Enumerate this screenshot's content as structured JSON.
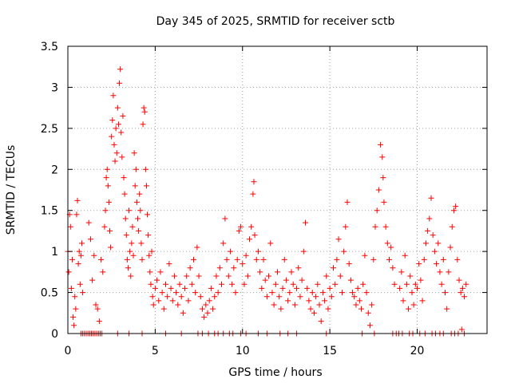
{
  "chart_data": {
    "type": "scatter",
    "title": "Day 345 of 2025, SRMTID for receiver sctb",
    "xlabel": "GPS time / hours",
    "ylabel": "SRMTID / TECUs",
    "xlim": [
      0,
      24
    ],
    "ylim": [
      0,
      3.5
    ],
    "xticks": [
      0,
      5,
      10,
      15,
      20
    ],
    "yticks": [
      0,
      0.5,
      1,
      1.5,
      2,
      2.5,
      3,
      3.5
    ],
    "xtick_labels": [
      "0",
      "5",
      "10",
      "15",
      "20"
    ],
    "ytick_labels": [
      "0",
      "0.5",
      "1",
      "1.5",
      "2",
      "2.5",
      "3",
      "3.5"
    ],
    "grid": true,
    "marker": "+",
    "color": "#ff0000",
    "series": [
      {
        "name": "SRMTID",
        "points": [
          [
            0.0,
            1.0
          ],
          [
            0.05,
            0.75
          ],
          [
            0.1,
            1.45
          ],
          [
            0.15,
            1.3
          ],
          [
            0.2,
            0.55
          ],
          [
            0.25,
            0.9
          ],
          [
            0.3,
            0.2
          ],
          [
            0.35,
            0.1
          ],
          [
            0.4,
            0.45
          ],
          [
            0.45,
            0.3
          ],
          [
            0.5,
            1.45
          ],
          [
            0.55,
            1.62
          ],
          [
            0.6,
            0.85
          ],
          [
            0.65,
            1.0
          ],
          [
            0.7,
            0.6
          ],
          [
            0.75,
            0.95
          ],
          [
            0.8,
            1.1
          ],
          [
            0.85,
            0.5
          ],
          [
            1.2,
            1.35
          ],
          [
            1.3,
            1.15
          ],
          [
            1.4,
            0.65
          ],
          [
            1.5,
            0.95
          ],
          [
            1.6,
            0.35
          ],
          [
            1.7,
            0.3
          ],
          [
            1.8,
            0.15
          ],
          [
            1.9,
            0.9
          ],
          [
            2.0,
            0.75
          ],
          [
            2.1,
            1.3
          ],
          [
            2.15,
            1.5
          ],
          [
            2.2,
            1.9
          ],
          [
            2.25,
            2.0
          ],
          [
            2.3,
            1.8
          ],
          [
            2.35,
            1.6
          ],
          [
            2.4,
            1.25
          ],
          [
            2.45,
            1.05
          ],
          [
            2.5,
            2.4
          ],
          [
            2.55,
            2.6
          ],
          [
            2.6,
            2.9
          ],
          [
            2.65,
            2.3
          ],
          [
            2.7,
            2.1
          ],
          [
            2.75,
            2.5
          ],
          [
            2.8,
            2.2
          ],
          [
            2.85,
            2.75
          ],
          [
            2.9,
            2.55
          ],
          [
            2.95,
            3.05
          ],
          [
            3.0,
            3.22
          ],
          [
            3.05,
            2.45
          ],
          [
            3.1,
            2.15
          ],
          [
            3.15,
            2.65
          ],
          [
            3.2,
            1.9
          ],
          [
            3.25,
            1.7
          ],
          [
            3.3,
            1.4
          ],
          [
            3.35,
            1.2
          ],
          [
            3.4,
            0.9
          ],
          [
            3.45,
            0.8
          ],
          [
            3.5,
            1.5
          ],
          [
            3.55,
            1.0
          ],
          [
            3.6,
            0.7
          ],
          [
            3.65,
            1.1
          ],
          [
            3.7,
            1.3
          ],
          [
            3.75,
            0.95
          ],
          [
            3.8,
            2.2
          ],
          [
            3.85,
            1.8
          ],
          [
            3.9,
            2.0
          ],
          [
            3.95,
            1.6
          ],
          [
            4.0,
            1.4
          ],
          [
            4.05,
            1.25
          ],
          [
            4.1,
            1.7
          ],
          [
            4.15,
            1.5
          ],
          [
            4.2,
            1.1
          ],
          [
            4.25,
            0.9
          ],
          [
            4.3,
            2.55
          ],
          [
            4.35,
            2.75
          ],
          [
            4.4,
            2.7
          ],
          [
            4.45,
            2.0
          ],
          [
            4.5,
            1.8
          ],
          [
            4.55,
            1.45
          ],
          [
            4.6,
            1.2
          ],
          [
            4.65,
            0.95
          ],
          [
            4.7,
            0.75
          ],
          [
            4.75,
            0.6
          ],
          [
            4.8,
            1.0
          ],
          [
            4.85,
            0.45
          ],
          [
            4.9,
            0.35
          ],
          [
            5.0,
            0.55
          ],
          [
            5.1,
            0.65
          ],
          [
            5.2,
            0.4
          ],
          [
            5.3,
            0.75
          ],
          [
            5.4,
            0.5
          ],
          [
            5.5,
            0.3
          ],
          [
            5.6,
            0.6
          ],
          [
            5.7,
            0.45
          ],
          [
            5.8,
            0.85
          ],
          [
            5.9,
            0.55
          ],
          [
            6.0,
            0.4
          ],
          [
            6.1,
            0.7
          ],
          [
            6.2,
            0.5
          ],
          [
            6.3,
            0.35
          ],
          [
            6.4,
            0.6
          ],
          [
            6.5,
            0.45
          ],
          [
            6.6,
            0.25
          ],
          [
            6.7,
            0.55
          ],
          [
            6.8,
            0.7
          ],
          [
            6.9,
            0.4
          ],
          [
            7.0,
            0.8
          ],
          [
            7.1,
            0.6
          ],
          [
            7.2,
            0.9
          ],
          [
            7.3,
            0.5
          ],
          [
            7.4,
            1.05
          ],
          [
            7.5,
            0.7
          ],
          [
            7.6,
            0.45
          ],
          [
            7.7,
            0.3
          ],
          [
            7.8,
            0.2
          ],
          [
            7.9,
            0.35
          ],
          [
            8.0,
            0.25
          ],
          [
            8.1,
            0.4
          ],
          [
            8.2,
            0.55
          ],
          [
            8.3,
            0.3
          ],
          [
            8.4,
            0.45
          ],
          [
            8.5,
            0.7
          ],
          [
            8.6,
            0.5
          ],
          [
            8.7,
            0.8
          ],
          [
            8.8,
            0.6
          ],
          [
            8.9,
            1.1
          ],
          [
            9.0,
            1.4
          ],
          [
            9.1,
            0.9
          ],
          [
            9.2,
            0.7
          ],
          [
            9.3,
            1.0
          ],
          [
            9.4,
            0.6
          ],
          [
            9.5,
            0.8
          ],
          [
            9.6,
            0.5
          ],
          [
            9.7,
            0.9
          ],
          [
            9.8,
            1.25
          ],
          [
            9.9,
            1.3
          ],
          [
            10.0,
            0.85
          ],
          [
            10.1,
            0.6
          ],
          [
            10.2,
            0.95
          ],
          [
            10.3,
            0.7
          ],
          [
            10.4,
            1.15
          ],
          [
            10.5,
            1.3
          ],
          [
            10.6,
            1.7
          ],
          [
            10.65,
            1.85
          ],
          [
            10.7,
            1.2
          ],
          [
            10.8,
            0.9
          ],
          [
            10.9,
            1.0
          ],
          [
            11.0,
            0.75
          ],
          [
            11.1,
            0.55
          ],
          [
            11.2,
            0.9
          ],
          [
            11.3,
            0.65
          ],
          [
            11.4,
            0.45
          ],
          [
            11.5,
            0.7
          ],
          [
            11.6,
            1.1
          ],
          [
            11.7,
            0.5
          ],
          [
            11.8,
            0.35
          ],
          [
            11.9,
            0.6
          ],
          [
            12.0,
            0.75
          ],
          [
            12.1,
            0.45
          ],
          [
            12.2,
            0.3
          ],
          [
            12.3,
            0.55
          ],
          [
            12.4,
            0.9
          ],
          [
            12.5,
            0.65
          ],
          [
            12.6,
            0.4
          ],
          [
            12.7,
            0.5
          ],
          [
            12.8,
            0.75
          ],
          [
            12.9,
            0.6
          ],
          [
            13.0,
            0.35
          ],
          [
            13.1,
            0.55
          ],
          [
            13.2,
            0.8
          ],
          [
            13.3,
            0.45
          ],
          [
            13.4,
            0.65
          ],
          [
            13.5,
            1.0
          ],
          [
            13.6,
            1.35
          ],
          [
            13.7,
            0.55
          ],
          [
            13.8,
            0.4
          ],
          [
            13.9,
            0.3
          ],
          [
            14.0,
            0.5
          ],
          [
            14.1,
            0.25
          ],
          [
            14.2,
            0.45
          ],
          [
            14.3,
            0.6
          ],
          [
            14.4,
            0.35
          ],
          [
            14.5,
            0.15
          ],
          [
            14.6,
            0.5
          ],
          [
            14.7,
            0.4
          ],
          [
            14.8,
            0.7
          ],
          [
            14.9,
            0.3
          ],
          [
            15.0,
            0.55
          ],
          [
            15.1,
            0.45
          ],
          [
            15.2,
            0.8
          ],
          [
            15.3,
            0.6
          ],
          [
            15.4,
            0.9
          ],
          [
            15.5,
            1.15
          ],
          [
            15.6,
            0.7
          ],
          [
            15.7,
            0.5
          ],
          [
            15.8,
            1.0
          ],
          [
            15.9,
            1.3
          ],
          [
            16.0,
            1.6
          ],
          [
            16.1,
            0.85
          ],
          [
            16.2,
            0.65
          ],
          [
            16.3,
            0.5
          ],
          [
            16.4,
            0.45
          ],
          [
            16.5,
            0.35
          ],
          [
            16.6,
            0.55
          ],
          [
            16.7,
            0.4
          ],
          [
            16.8,
            0.3
          ],
          [
            16.9,
            0.6
          ],
          [
            17.0,
            0.95
          ],
          [
            17.1,
            0.5
          ],
          [
            17.2,
            0.25
          ],
          [
            17.3,
            0.1
          ],
          [
            17.4,
            0.35
          ],
          [
            17.5,
            0.9
          ],
          [
            17.6,
            1.3
          ],
          [
            17.7,
            1.5
          ],
          [
            17.8,
            1.75
          ],
          [
            17.9,
            2.3
          ],
          [
            18.0,
            2.15
          ],
          [
            18.05,
            1.9
          ],
          [
            18.1,
            1.6
          ],
          [
            18.2,
            1.3
          ],
          [
            18.3,
            1.1
          ],
          [
            18.4,
            0.9
          ],
          [
            18.5,
            1.05
          ],
          [
            18.6,
            0.8
          ],
          [
            18.7,
            0.6
          ],
          [
            19.0,
            0.55
          ],
          [
            19.1,
            0.75
          ],
          [
            19.2,
            0.4
          ],
          [
            19.3,
            0.95
          ],
          [
            19.4,
            0.6
          ],
          [
            19.5,
            0.3
          ],
          [
            19.6,
            0.7
          ],
          [
            19.7,
            0.5
          ],
          [
            19.8,
            0.35
          ],
          [
            19.9,
            0.6
          ],
          [
            20.0,
            0.55
          ],
          [
            20.1,
            0.85
          ],
          [
            20.2,
            0.65
          ],
          [
            20.3,
            0.4
          ],
          [
            20.4,
            0.9
          ],
          [
            20.5,
            1.1
          ],
          [
            20.6,
            1.25
          ],
          [
            20.7,
            1.4
          ],
          [
            20.8,
            1.65
          ],
          [
            20.9,
            1.2
          ],
          [
            21.0,
            1.0
          ],
          [
            21.1,
            0.85
          ],
          [
            21.2,
            1.1
          ],
          [
            21.3,
            0.75
          ],
          [
            21.4,
            0.6
          ],
          [
            21.5,
            0.9
          ],
          [
            21.6,
            0.5
          ],
          [
            21.7,
            0.3
          ],
          [
            21.8,
            0.75
          ],
          [
            21.9,
            1.05
          ],
          [
            22.0,
            1.3
          ],
          [
            22.1,
            1.5
          ],
          [
            22.2,
            1.55
          ],
          [
            22.3,
            0.9
          ],
          [
            22.4,
            0.65
          ],
          [
            22.5,
            0.5
          ],
          [
            22.55,
            0.05
          ],
          [
            22.6,
            0.55
          ],
          [
            22.7,
            0.45
          ],
          [
            22.8,
            0.6
          ]
        ],
        "zero_points": [
          0.75,
          0.85,
          0.95,
          1.05,
          1.15,
          1.25,
          1.35,
          1.45,
          1.55,
          1.65,
          1.75,
          1.85,
          1.95,
          2.85,
          3.5,
          4.25,
          5.6,
          6.5,
          7.45,
          7.7,
          8.05,
          8.4,
          8.6,
          8.9,
          9.25,
          9.45,
          9.9,
          10.2,
          10.9,
          11.4,
          12.15,
          12.6,
          13.1,
          14.8,
          16.85,
          17.55,
          18.6,
          18.8,
          18.95,
          19.15,
          19.55,
          19.75,
          20.15,
          20.45,
          20.85,
          21.05,
          21.3,
          21.5,
          21.95,
          22.15,
          22.35,
          22.7
        ]
      }
    ]
  }
}
